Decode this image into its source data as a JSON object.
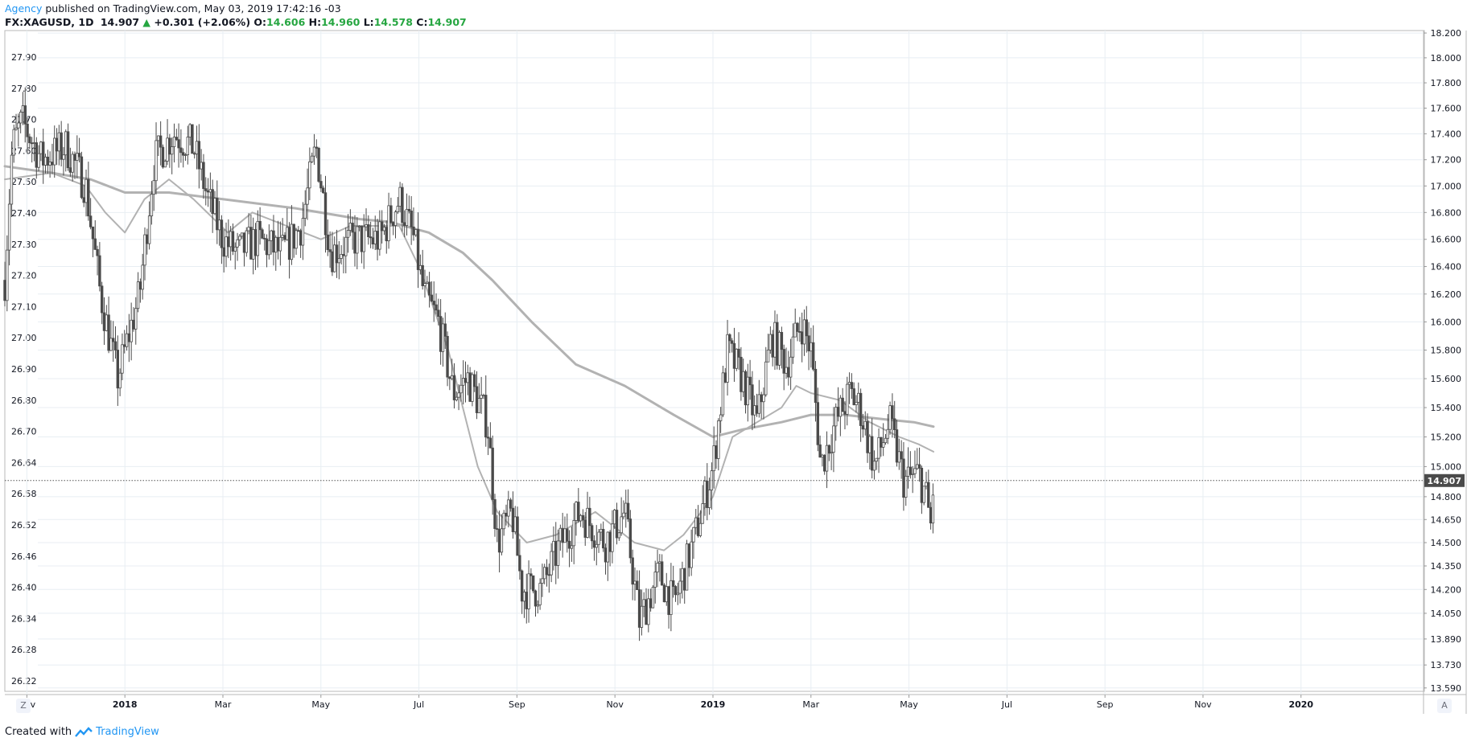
{
  "header": {
    "publisher": "Agency",
    "published_text": "published on TradingView.com, May 03, 2019 17:42:16 -03"
  },
  "ohlc": {
    "symbol": "FX:XAGUSD, 1D",
    "last": "14.907",
    "change": "+0.301 (+2.06%)",
    "o_label": "O:",
    "o": "14.606",
    "h_label": "H:",
    "h": "14.960",
    "l_label": "L:",
    "l": "14.578",
    "c_label": "C:",
    "c": "14.907"
  },
  "footer": {
    "created_with": "Created with",
    "brand": "TradingView"
  },
  "buttons": {
    "left": "Z",
    "right": "A"
  },
  "colors": {
    "candle": "#4a4a4a",
    "ma": "#b2b2b2",
    "grid": "#e8eef3",
    "price_tag_bg": "#4a4a4a",
    "up": "#26a641",
    "brand": "#2196f3"
  },
  "chart_data": {
    "type": "candlestick",
    "symbol": "FX:XAGUSD",
    "interval": "1D",
    "x_labels": [
      "Nov",
      "2018",
      "Mar",
      "May",
      "Jul",
      "Sep",
      "Nov",
      "2019",
      "Mar",
      "May",
      "Jul",
      "Sep",
      "Nov",
      "2020"
    ],
    "x_label_months": [
      0,
      2,
      4,
      6,
      8,
      10,
      12,
      14,
      16,
      18,
      20,
      22,
      24,
      26
    ],
    "x_range_months": [
      -0.45,
      28.5
    ],
    "right_axis": {
      "ticks": [
        18.2,
        18.0,
        17.8,
        17.6,
        17.4,
        17.2,
        17.0,
        16.8,
        16.6,
        16.4,
        16.2,
        16.0,
        15.8,
        15.6,
        15.4,
        15.2,
        15.0,
        14.8,
        14.65,
        14.5,
        14.35,
        14.2,
        14.05,
        13.89,
        13.73,
        13.59
      ],
      "tick_labels": [
        "18.200",
        "18.000",
        "17.800",
        "17.600",
        "17.400",
        "17.200",
        "17.000",
        "16.800",
        "16.600",
        "16.400",
        "16.200",
        "16.000",
        "15.800",
        "15.600",
        "15.400",
        "15.200",
        "15.000",
        "14.800",
        "14.650",
        "14.500",
        "14.350",
        "14.200",
        "14.050",
        "13.890",
        "13.730",
        "13.590"
      ],
      "scale": "log",
      "range": [
        13.55,
        18.22
      ]
    },
    "left_axis": {
      "tick_labels": [
        "27.90",
        "27.80",
        "27.70",
        "27.60",
        "27.50",
        "27.40",
        "27.30",
        "27.20",
        "27.10",
        "27.00",
        "26.90",
        "26.80",
        "26.70",
        "26.64",
        "26.58",
        "26.52",
        "26.46",
        "26.40",
        "26.34",
        "26.28",
        "26.22"
      ]
    },
    "last_price": 14.907,
    "last_price_label": "14.907",
    "price_path": [
      [
        -0.45,
        16.3
      ],
      [
        -0.3,
        17.3
      ],
      [
        -0.1,
        17.5
      ],
      [
        0.3,
        17.2
      ],
      [
        0.8,
        17.3
      ],
      [
        1.2,
        17.0
      ],
      [
        1.5,
        16.2
      ],
      [
        1.85,
        15.6
      ],
      [
        2.3,
        16.2
      ],
      [
        2.6,
        17.2
      ],
      [
        3.0,
        17.4
      ],
      [
        3.4,
        17.3
      ],
      [
        3.7,
        16.9
      ],
      [
        4.0,
        16.6
      ],
      [
        4.3,
        16.5
      ],
      [
        4.7,
        16.6
      ],
      [
        5.2,
        16.5
      ],
      [
        5.6,
        16.7
      ],
      [
        5.9,
        17.3
      ],
      [
        6.2,
        16.5
      ],
      [
        6.7,
        16.6
      ],
      [
        7.2,
        16.6
      ],
      [
        7.6,
        16.9
      ],
      [
        7.9,
        16.6
      ],
      [
        8.1,
        16.2
      ],
      [
        8.4,
        16.0
      ],
      [
        8.7,
        15.5
      ],
      [
        9.0,
        15.6
      ],
      [
        9.4,
        15.3
      ],
      [
        9.6,
        14.5
      ],
      [
        9.9,
        14.7
      ],
      [
        10.1,
        14.2
      ],
      [
        10.5,
        14.2
      ],
      [
        10.9,
        14.5
      ],
      [
        11.3,
        14.7
      ],
      [
        11.8,
        14.5
      ],
      [
        12.2,
        14.7
      ],
      [
        12.5,
        14.0
      ],
      [
        12.9,
        14.3
      ],
      [
        13.2,
        14.1
      ],
      [
        13.6,
        14.5
      ],
      [
        14.0,
        15.0
      ],
      [
        14.3,
        15.8
      ],
      [
        14.6,
        15.6
      ],
      [
        14.9,
        15.3
      ],
      [
        15.2,
        15.9
      ],
      [
        15.5,
        15.7
      ],
      [
        15.8,
        16.0
      ],
      [
        16.0,
        15.8
      ],
      [
        16.2,
        15.0
      ],
      [
        16.5,
        15.3
      ],
      [
        16.8,
        15.5
      ],
      [
        17.0,
        15.4
      ],
      [
        17.3,
        15.0
      ],
      [
        17.6,
        15.3
      ],
      [
        17.9,
        14.9
      ],
      [
        18.2,
        14.95
      ],
      [
        18.35,
        14.8
      ],
      [
        18.45,
        14.6
      ],
      [
        18.5,
        14.907
      ]
    ],
    "moving_averages": [
      {
        "points": [
          [
            -0.45,
            17.15
          ],
          [
            0.5,
            17.1
          ],
          [
            1.3,
            17.05
          ],
          [
            2.0,
            16.95
          ],
          [
            2.9,
            16.95
          ],
          [
            4.0,
            16.9
          ],
          [
            5.5,
            16.83
          ],
          [
            6.8,
            16.75
          ],
          [
            7.4,
            16.73
          ],
          [
            8.2,
            16.65
          ],
          [
            8.9,
            16.5
          ],
          [
            9.5,
            16.3
          ],
          [
            10.3,
            16.0
          ],
          [
            11.2,
            15.7
          ],
          [
            12.2,
            15.55
          ],
          [
            13.2,
            15.35
          ],
          [
            14.0,
            15.2
          ],
          [
            14.6,
            15.25
          ],
          [
            15.4,
            15.3
          ],
          [
            16.0,
            15.35
          ],
          [
            16.7,
            15.35
          ],
          [
            17.5,
            15.32
          ],
          [
            18.1,
            15.3
          ],
          [
            18.5,
            15.27
          ]
        ]
      },
      {
        "points": [
          [
            -0.45,
            17.05
          ],
          [
            0.5,
            17.1
          ],
          [
            1.2,
            17.0
          ],
          [
            1.6,
            16.8
          ],
          [
            2.0,
            16.65
          ],
          [
            2.4,
            16.9
          ],
          [
            2.9,
            17.05
          ],
          [
            3.4,
            16.9
          ],
          [
            4.1,
            16.65
          ],
          [
            4.6,
            16.8
          ],
          [
            5.3,
            16.7
          ],
          [
            6.0,
            16.6
          ],
          [
            6.6,
            16.7
          ],
          [
            7.2,
            16.7
          ],
          [
            7.6,
            16.7
          ],
          [
            8.0,
            16.4
          ],
          [
            8.6,
            15.8
          ],
          [
            9.2,
            15.0
          ],
          [
            9.6,
            14.7
          ],
          [
            10.2,
            14.5
          ],
          [
            10.8,
            14.55
          ],
          [
            11.6,
            14.7
          ],
          [
            12.4,
            14.5
          ],
          [
            13.0,
            14.45
          ],
          [
            13.4,
            14.55
          ],
          [
            14.0,
            14.8
          ],
          [
            14.4,
            15.2
          ],
          [
            14.9,
            15.3
          ],
          [
            15.4,
            15.4
          ],
          [
            15.7,
            15.55
          ],
          [
            16.0,
            15.5
          ],
          [
            16.6,
            15.45
          ],
          [
            17.2,
            15.3
          ],
          [
            17.8,
            15.2
          ],
          [
            18.2,
            15.15
          ],
          [
            18.5,
            15.1
          ]
        ]
      }
    ]
  }
}
